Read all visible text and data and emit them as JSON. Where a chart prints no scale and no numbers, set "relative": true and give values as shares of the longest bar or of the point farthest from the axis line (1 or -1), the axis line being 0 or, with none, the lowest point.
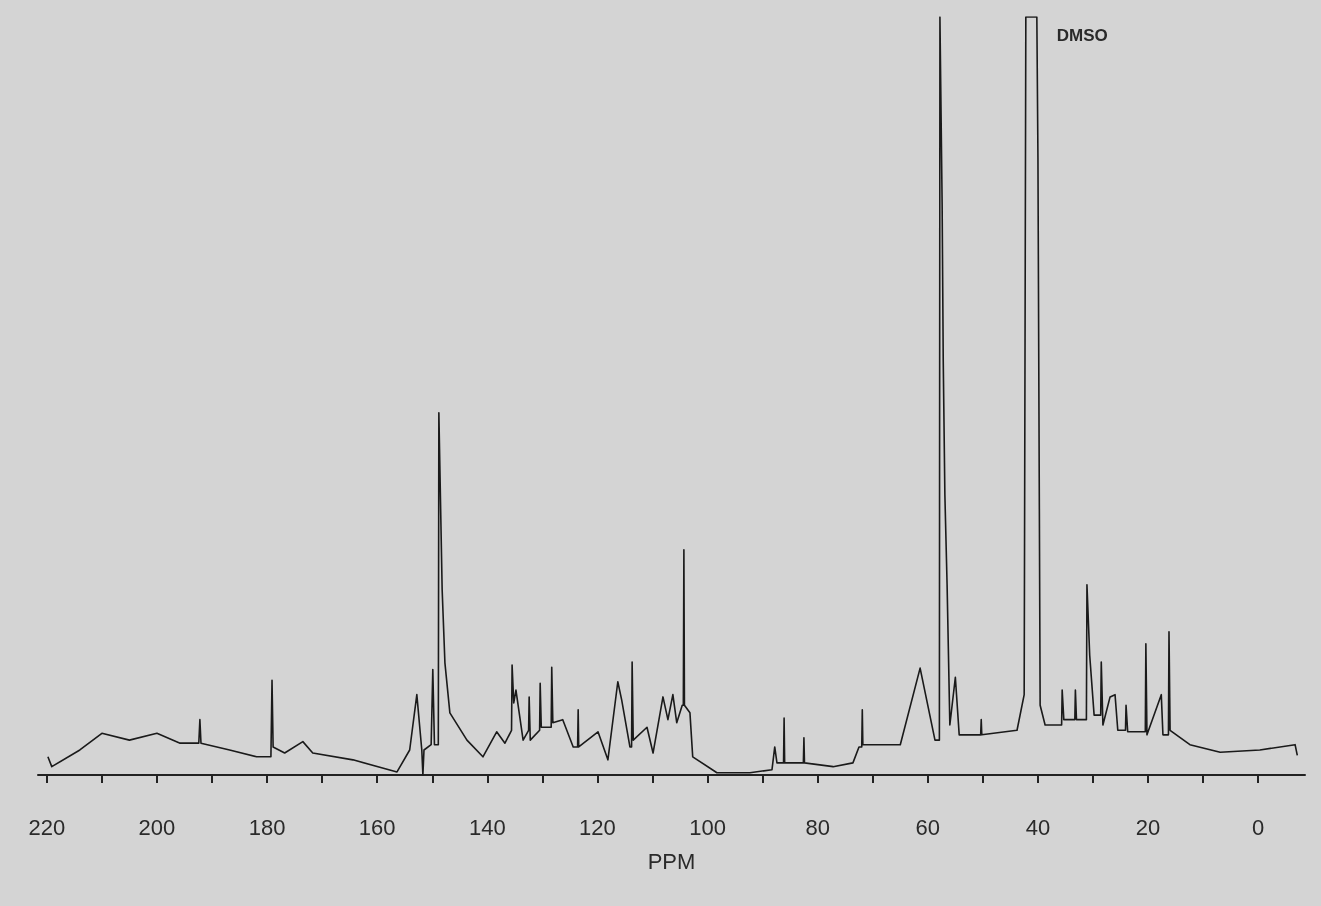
{
  "chart_data": {
    "type": "line",
    "relative": true,
    "xlabel": "PPM",
    "marker": "none",
    "xlim": [
      221.6,
      -8.5
    ],
    "xticks": [
      220,
      {
        "value": 210,
        "label": null
      },
      200,
      {
        "value": 190,
        "label": null
      },
      180,
      {
        "value": 170,
        "label": null
      },
      160,
      {
        "value": 150,
        "label": null
      },
      140,
      {
        "value": 130,
        "label": null
      },
      120,
      {
        "value": 110,
        "label": null
      },
      100,
      {
        "value": 90,
        "label": null
      },
      80,
      {
        "value": 70,
        "label": null
      },
      60,
      {
        "value": 50,
        "label": null
      },
      40,
      {
        "value": 30,
        "label": null
      },
      20,
      {
        "value": 10,
        "label": null
      },
      0
    ],
    "annotations": [
      {
        "text": "DMSO",
        "x": 40.2,
        "y": 1
      }
    ],
    "series": [
      {
        "color": "#1a1a1a",
        "x": [
          219.8,
          219.1,
          214,
          210,
          205,
          200,
          195.8,
          192.4,
          192.2,
          192.0,
          186.8,
          181.9,
          179.3,
          179.1,
          178.9,
          176.8,
          173.5,
          171.7,
          164.4,
          156.4,
          154.1,
          152.8,
          151.9,
          151.7,
          151.5,
          150.2,
          149.9,
          149.6,
          148.9,
          148.8,
          148.2,
          147.7,
          146.8,
          143.7,
          140.8,
          138.3,
          136.8,
          135.6,
          135.5,
          135.2,
          134.8,
          133.5,
          132.5,
          132.4,
          132.2,
          130.5,
          130.4,
          130.2,
          128.4,
          128.3,
          128.1,
          126.3,
          124.4,
          123.6,
          123.5,
          123.4,
          119.9,
          118.1,
          116.3,
          115.6,
          114.1,
          113.8,
          113.7,
          113.5,
          111.0,
          109.9,
          108.1,
          107.2,
          106.3,
          105.6,
          104.6,
          104.4,
          104.3,
          104.2,
          103.2,
          102.7,
          98.3,
          92.3,
          88.3,
          87.8,
          87.4,
          86.2,
          86.1,
          86.0,
          82.6,
          82.5,
          82.4,
          77.2,
          73.6,
          72.5,
          72.0,
          71.9,
          71.8,
          65.0,
          61.4,
          58.7,
          57.9,
          57.8,
          57.4,
          57.2,
          56.9,
          56.5,
          56.0,
          55.0,
          54.3,
          50.4,
          50.3,
          50.2,
          43.8,
          42.5,
          42.2,
          40.2,
          40.0,
          39.6,
          38.7,
          35.7,
          35.6,
          35.3,
          33.3,
          33.2,
          33.0,
          31.2,
          31.1,
          30.6,
          29.8,
          28.6,
          28.5,
          28.2,
          26.9,
          26.0,
          25.5,
          24.1,
          24.0,
          23.7,
          20.5,
          20.4,
          20.2,
          17.6,
          17.3,
          16.3,
          16.2,
          16.0,
          12.4,
          6.9,
          -0.3,
          -6.7,
          -7.1
        ],
        "values": [
          0.024,
          0.011,
          0.033,
          0.055,
          0.046,
          0.055,
          0.042,
          0.042,
          0.073,
          0.042,
          0.033,
          0.024,
          0.024,
          0.125,
          0.037,
          0.029,
          0.044,
          0.029,
          0.02,
          0.004,
          0.033,
          0.106,
          0.033,
          0,
          0.033,
          0.04,
          0.139,
          0.04,
          0.04,
          0.478,
          0.244,
          0.148,
          0.082,
          0.046,
          0.024,
          0.057,
          0.042,
          0.059,
          0.145,
          0.095,
          0.112,
          0.046,
          0.059,
          0.103,
          0.046,
          0.059,
          0.121,
          0.063,
          0.063,
          0.142,
          0.069,
          0.073,
          0.037,
          0.037,
          0.086,
          0.037,
          0.057,
          0.02,
          0.123,
          0.099,
          0.037,
          0.037,
          0.149,
          0.046,
          0.063,
          0.029,
          0.103,
          0.073,
          0.106,
          0.069,
          0.092,
          0.092,
          0.297,
          0.092,
          0.082,
          0.024,
          0.003,
          0.003,
          0.007,
          0.037,
          0.016,
          0.016,
          0.075,
          0.016,
          0.016,
          0.049,
          0.016,
          0.011,
          0.016,
          0.037,
          0.037,
          0.086,
          0.04,
          0.04,
          0.141,
          0.046,
          0.046,
          1.0,
          0.752,
          0.547,
          0.369,
          0.251,
          0.066,
          0.129,
          0.053,
          0.053,
          0.073,
          0.053,
          0.059,
          0.106,
          1.0,
          1.0,
          0.815,
          0.092,
          0.066,
          0.066,
          0.112,
          0.073,
          0.073,
          0.112,
          0.073,
          0.073,
          0.251,
          0.158,
          0.079,
          0.079,
          0.149,
          0.066,
          0.103,
          0.106,
          0.059,
          0.059,
          0.092,
          0.057,
          0.057,
          0.173,
          0.053,
          0.106,
          0.053,
          0.053,
          0.189,
          0.059,
          0.04,
          0.03,
          0.033,
          0.04,
          0.026
        ]
      }
    ]
  }
}
